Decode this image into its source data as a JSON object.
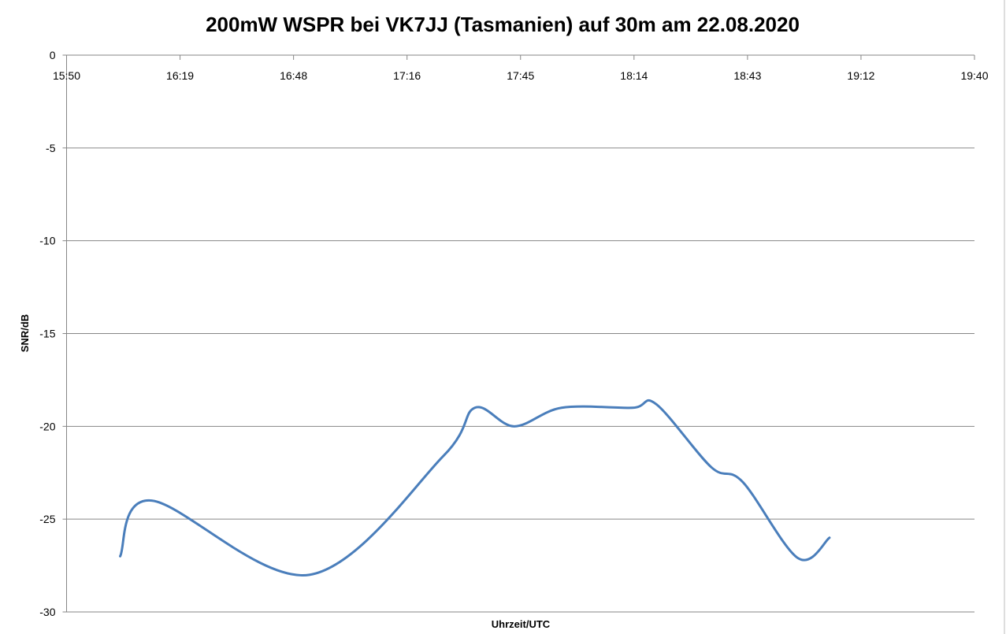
{
  "chart_data": {
    "type": "line",
    "title": "200mW WSPR bei VK7JJ (Tasmanien) auf 30m am 22.08.2020",
    "xlabel": "Uhrzeit/UTC",
    "ylabel": "SNR/dB",
    "x_tick_labels": [
      "15:50",
      "16:19",
      "16:48",
      "17:16",
      "17:45",
      "18:14",
      "18:43",
      "19:12",
      "19:40"
    ],
    "y_tick_labels": [
      "0",
      "-5",
      "-10",
      "-15",
      "-20",
      "-25",
      "-30"
    ],
    "xlim": [
      "15:50",
      "19:40"
    ],
    "ylim": [
      -30,
      0
    ],
    "grid": true,
    "smoothed": true,
    "line_color": "#4a7ebb",
    "series": [
      {
        "x": [
          "16:04",
          "16:12",
          "16:52",
          "17:26",
          "17:34",
          "17:44",
          "17:56",
          "18:14",
          "18:20",
          "18:34",
          "18:42",
          "18:56",
          "19:04"
        ],
        "values": [
          -27,
          -24,
          -28,
          -21.6,
          -19,
          -20,
          -19,
          -19,
          -18.8,
          -22.2,
          -23,
          -27.1,
          -26
        ]
      }
    ]
  }
}
